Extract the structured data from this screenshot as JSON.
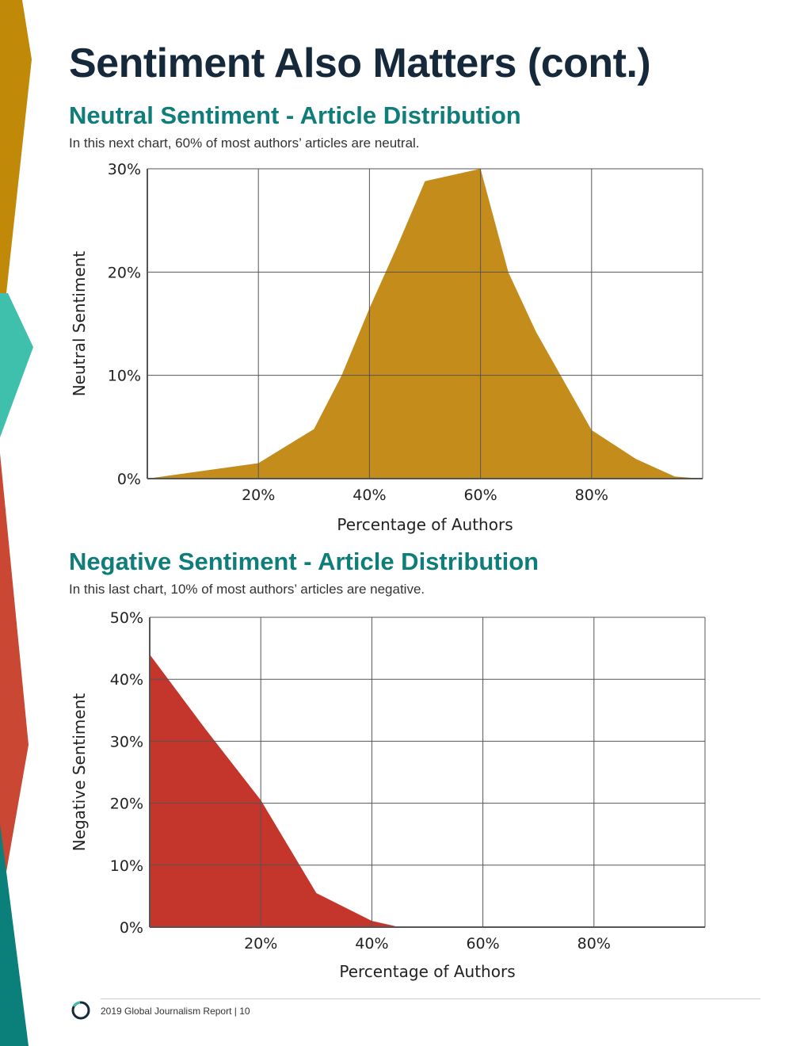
{
  "page": {
    "title": "Sentiment Also Matters (cont.)",
    "footer": "2019 Global Journalism Report | 10"
  },
  "colors": {
    "title": "#15293a",
    "section_title": "#0f7d79",
    "neutral_fill": "#c48c1a",
    "negative_fill": "#c4352c",
    "grid": "#555555",
    "deco_gold": "#c08a08",
    "deco_teal_light": "#3fc0ad",
    "deco_red": "#c94733",
    "deco_teal_dark": "#0b7f79"
  },
  "icons": [
    "ring-logo-icon"
  ],
  "sections": [
    {
      "title": "Neutral Sentiment - Article Distribution",
      "description": "In this next chart, 60% of most authors’ articles are neutral."
    },
    {
      "title": "Negative Sentiment - Article Distribution",
      "description": "In this last chart, 10% of most authors’ articles are negative."
    }
  ],
  "chart_data": [
    {
      "type": "area",
      "xlabel": "Percentage of Authors",
      "ylabel": "Neutral Sentiment",
      "xlim": [
        0,
        100
      ],
      "ylim": [
        0,
        30
      ],
      "xticks": [
        20,
        40,
        60,
        80
      ],
      "xtick_labels": [
        "20%",
        "40%",
        "60%",
        "80%"
      ],
      "yticks": [
        0,
        10,
        20,
        30
      ],
      "ytick_labels": [
        "0%",
        "10%",
        "20%",
        "30%"
      ],
      "grid": true,
      "color": "#c48c1a",
      "x": [
        0,
        20,
        30,
        35,
        40,
        45,
        50,
        60,
        65,
        70,
        80,
        88,
        95,
        100
      ],
      "y": [
        0,
        1.5,
        4.8,
        10,
        16.5,
        22.5,
        28.8,
        30,
        20,
        14.2,
        4.7,
        1.9,
        0.2,
        0
      ]
    },
    {
      "type": "area",
      "xlabel": "Percentage of Authors",
      "ylabel": "Negative Sentiment",
      "xlim": [
        0,
        100
      ],
      "ylim": [
        0,
        50
      ],
      "xticks": [
        20,
        40,
        60,
        80
      ],
      "xtick_labels": [
        "20%",
        "40%",
        "60%",
        "80%"
      ],
      "yticks": [
        0,
        10,
        20,
        30,
        40,
        50
      ],
      "ytick_labels": [
        "0%",
        "10%",
        "20%",
        "30%",
        "40%",
        "50%"
      ],
      "grid": true,
      "color": "#c4352c",
      "x": [
        0,
        10,
        20,
        30,
        40,
        45,
        60,
        80,
        100
      ],
      "y": [
        44,
        32,
        20.5,
        5.5,
        1,
        0,
        0,
        0,
        0
      ]
    }
  ]
}
